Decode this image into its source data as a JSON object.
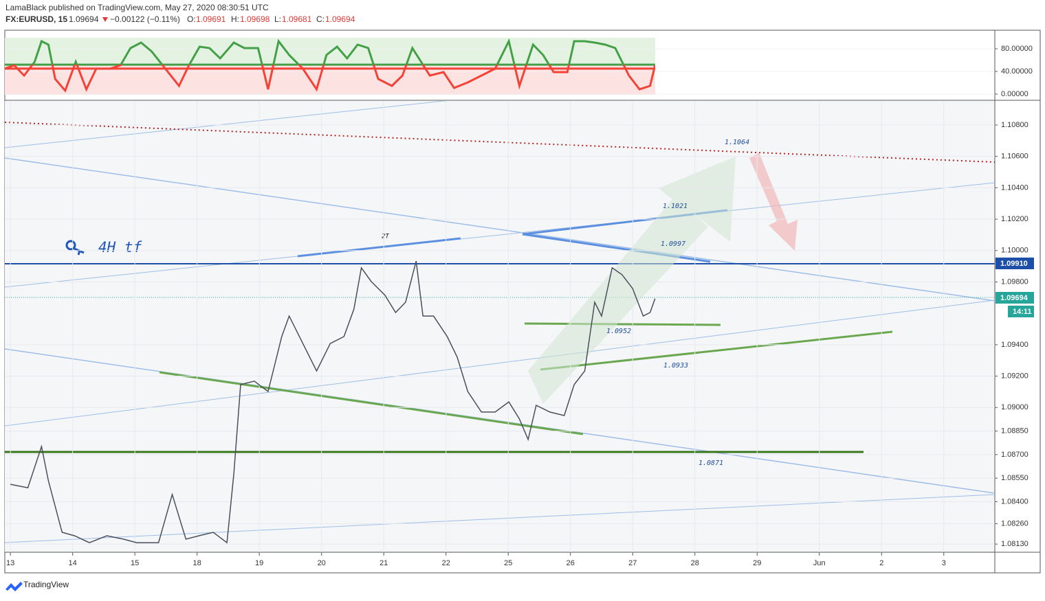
{
  "header": {
    "publisher": "LamaBlack published on TradingView.com, May 27, 2020 08:30:51 UTC",
    "symbol": "FX:EURUSD, 15",
    "last": "1.09694",
    "change": "−0.00122 (−0.11%)",
    "o_label": "O:",
    "o": "1.09691",
    "h_label": "H:",
    "h": "1.09698",
    "l_label": "L:",
    "l": "1.09681",
    "c_label": "C:",
    "c": "1.09694"
  },
  "annotations": {
    "note": "4H tf",
    "pattern": "2T",
    "levels": [
      1.1064,
      1.1021,
      1.0997,
      1.0952,
      1.0933,
      1.0871
    ]
  },
  "price_labels": {
    "level": "1.09910",
    "last": "1.09694",
    "countdown": "14:11"
  },
  "footer": {
    "brand": "TradingView"
  },
  "chart_data": [
    {
      "type": "line",
      "color": "#4a4e5a",
      "x": [
        0,
        0.28,
        0.5,
        0.61,
        0.83,
        1.03,
        1.27,
        1.55,
        1.82,
        2.03,
        2.38,
        2.6,
        2.82,
        3.03,
        3.26,
        3.48,
        3.59,
        3.7,
        3.92,
        4.14,
        4.36,
        4.48,
        4.7,
        4.92,
        5.14,
        5.36,
        5.52,
        5.64,
        5.8,
        6.02,
        6.19,
        6.35,
        6.52,
        6.63,
        6.8,
        7.02,
        7.18,
        7.35,
        7.57,
        7.79,
        8.01,
        8.18,
        8.32,
        8.45,
        8.67,
        8.9,
        9.06,
        9.23,
        9.39,
        9.5,
        9.67,
        9.83,
        10.0,
        10.17,
        10.28,
        10.36
      ],
      "values": [
        1.08511,
        1.08489,
        1.08752,
        1.08533,
        1.08205,
        1.08183,
        1.08139,
        1.08183,
        1.08161,
        1.08139,
        1.08139,
        1.08446,
        1.08161,
        1.08183,
        1.08205,
        1.08139,
        1.08577,
        1.09146,
        1.09168,
        1.09102,
        1.09452,
        1.09583,
        1.09408,
        1.09233,
        1.09408,
        1.09452,
        1.09627,
        1.0989,
        1.09802,
        1.09715,
        1.09605,
        1.09671,
        1.09933,
        1.09583,
        1.09583,
        1.09452,
        1.09321,
        1.09102,
        1.08971,
        1.08971,
        1.09036,
        1.08927,
        1.08796,
        1.09014,
        1.08971,
        1.08949,
        1.09146,
        1.09233,
        1.09671,
        1.09583,
        1.0989,
        1.09846,
        1.09758,
        1.09583,
        1.09605,
        1.09694
      ],
      "xlim": [
        -0.09,
        15.82
      ],
      "xticks": [
        {
          "value": 0,
          "label": "13"
        },
        {
          "value": 1,
          "label": "14"
        },
        {
          "value": 2,
          "label": "15"
        },
        {
          "value": 3,
          "label": "18"
        },
        {
          "value": 4,
          "label": "19"
        },
        {
          "value": 5,
          "label": "20"
        },
        {
          "value": 6,
          "label": "21"
        },
        {
          "value": 7,
          "label": "22"
        },
        {
          "value": 8,
          "label": "25"
        },
        {
          "value": 9,
          "label": "26"
        },
        {
          "value": 10,
          "label": "27"
        },
        {
          "value": 11,
          "label": "28"
        },
        {
          "value": 12,
          "label": "29"
        },
        {
          "value": 13,
          "label": "Jun"
        },
        {
          "value": 14,
          "label": "2"
        },
        {
          "value": 15,
          "label": "3"
        }
      ],
      "ylim": [
        1.08078,
        1.10953
      ],
      "yticks": [
        {
          "value": 1.108,
          "label": "1.10800"
        },
        {
          "value": 1.106,
          "label": "1.10600"
        },
        {
          "value": 1.104,
          "label": "1.10400"
        },
        {
          "value": 1.102,
          "label": "1.10200"
        },
        {
          "value": 1.1,
          "label": "1.10000"
        },
        {
          "value": 1.098,
          "label": "1.09800"
        },
        {
          "value": 1.094,
          "label": "1.09400"
        },
        {
          "value": 1.092,
          "label": "1.09200"
        },
        {
          "value": 1.09,
          "label": "1.09000"
        },
        {
          "value": 1.0885,
          "label": "1.08850"
        },
        {
          "value": 1.087,
          "label": "1.08700"
        },
        {
          "value": 1.0855,
          "label": "1.08550"
        },
        {
          "value": 1.084,
          "label": "1.08400"
        },
        {
          "value": 1.0826,
          "label": "1.08260"
        },
        {
          "value": 1.0813,
          "label": "1.08130"
        }
      ],
      "grid": true
    },
    {
      "type": "oscillator",
      "up_color": "#43a047",
      "down_color": "#f44336",
      "band_lines": [
        52,
        45
      ],
      "x": [
        -0.09,
        0.06,
        0.22,
        0.39,
        0.5,
        0.61,
        0.72,
        0.88,
        1.05,
        1.22,
        1.38,
        1.6,
        1.77,
        1.93,
        2.1,
        2.27,
        2.49,
        2.71,
        2.87,
        3.04,
        3.2,
        3.37,
        3.59,
        3.76,
        3.98,
        4.14,
        4.31,
        4.48,
        4.7,
        4.92,
        5.08,
        5.25,
        5.41,
        5.58,
        5.75,
        5.91,
        6.13,
        6.3,
        6.46,
        6.6,
        6.74,
        6.96,
        7.13,
        7.35,
        7.57,
        7.79,
        8.01,
        8.18,
        8.4,
        8.56,
        8.73,
        8.95,
        9.06,
        9.23,
        9.39,
        9.56,
        9.72,
        9.94,
        10.11,
        10.28,
        10.36
      ],
      "values": [
        44.8,
        50.9,
        32.7,
        57,
        93.3,
        87.3,
        26.7,
        6.1,
        57,
        8.5,
        44.8,
        44.8,
        50.9,
        81.2,
        90.9,
        75.2,
        44.8,
        14.5,
        50.9,
        83.6,
        81.2,
        63,
        90.9,
        81.2,
        81.2,
        8.5,
        93.3,
        69.1,
        44.8,
        8.5,
        69.1,
        83.6,
        63,
        87.3,
        81.2,
        26.7,
        14.5,
        32.7,
        81.2,
        57,
        32.7,
        38.8,
        10.9,
        20.6,
        32.7,
        44.8,
        93.3,
        14.5,
        87.3,
        69.1,
        38.8,
        38.8,
        93.3,
        93.3,
        90.9,
        87.3,
        81.2,
        32.7,
        8.5,
        14.5,
        50.9
      ],
      "ylim": [
        -8.5,
        111.5
      ],
      "yticks": [
        {
          "value": 80,
          "label": "80.00000"
        },
        {
          "value": 40,
          "label": "40.00000"
        },
        {
          "value": 0,
          "label": "0.00000"
        }
      ]
    }
  ]
}
